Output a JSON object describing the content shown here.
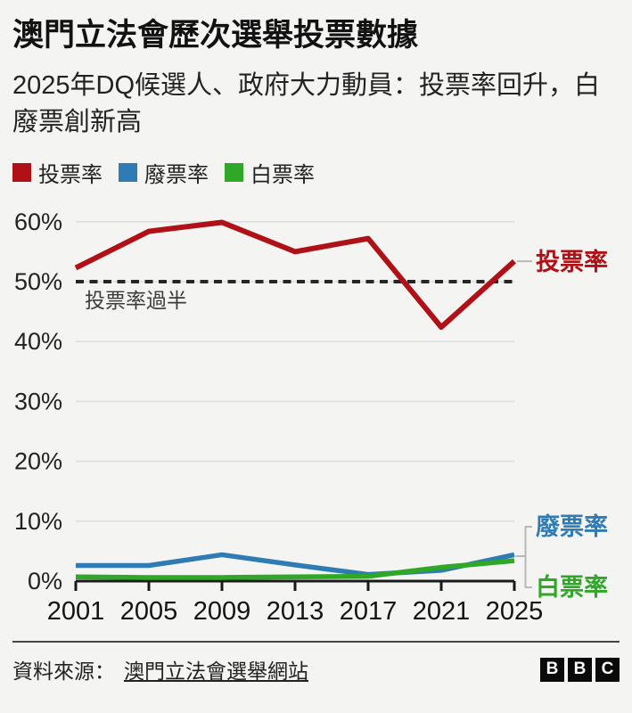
{
  "header": {
    "title": "澳門立法會歷次選舉投票數據",
    "subtitle": "2025年DQ候選人、政府大力動員：投票率回升，白廢票創新高"
  },
  "legend": [
    {
      "key": "turnout-rate",
      "label": "投票率",
      "color": "#b01116"
    },
    {
      "key": "invalid-vote-rate",
      "label": "廢票率",
      "color": "#2f7cb5"
    },
    {
      "key": "blank-vote-rate",
      "label": "白票率",
      "color": "#2ea826"
    }
  ],
  "chart_data": {
    "type": "line",
    "x": [
      2001,
      2005,
      2009,
      2013,
      2017,
      2021,
      2025
    ],
    "x_tick_labels": [
      "2001",
      "2005",
      "2009",
      "2013",
      "2017",
      "2021",
      "2025"
    ],
    "series": [
      {
        "key": "turnout-rate",
        "name": "投票率",
        "color": "#b01116",
        "values": [
          52.3,
          58.4,
          59.9,
          55.0,
          57.2,
          42.4,
          53.4
        ]
      },
      {
        "key": "invalid-vote-rate",
        "name": "廢票率",
        "color": "#2f7cb5",
        "values": [
          2.6,
          2.6,
          4.4,
          2.7,
          1.1,
          1.8,
          4.4
        ]
      },
      {
        "key": "blank-vote-rate",
        "name": "白票率",
        "color": "#2ea826",
        "values": [
          0.7,
          0.6,
          0.6,
          0.7,
          0.8,
          2.3,
          3.4
        ]
      }
    ],
    "ylim": [
      0,
      62
    ],
    "yticks": [
      0,
      10,
      20,
      30,
      40,
      50,
      60
    ],
    "ytick_labels": [
      "0%",
      "10%",
      "20%",
      "30%",
      "40%",
      "50%",
      "60%"
    ],
    "reference_line": {
      "value": 50,
      "label": "投票率過半",
      "style": "dashed",
      "color": "#262626"
    },
    "grid": "horizontal",
    "gridline_color": "#dcdcdc",
    "axis_color": "#1a1a1a",
    "connector_color": "#b9b9b9",
    "legend_position": "top",
    "end_labels": [
      {
        "key": "turnout-rate",
        "text": "投票率",
        "color": "#b01116"
      },
      {
        "key": "invalid-vote-rate",
        "text": "廢票率",
        "color": "#2f7cb5"
      },
      {
        "key": "blank-vote-rate",
        "text": "白票率",
        "color": "#2ea826"
      }
    ]
  },
  "footer": {
    "source_label": "資料來源：",
    "source_link": "澳門立法會選舉網站",
    "logo_letters": [
      "B",
      "B",
      "C"
    ]
  }
}
